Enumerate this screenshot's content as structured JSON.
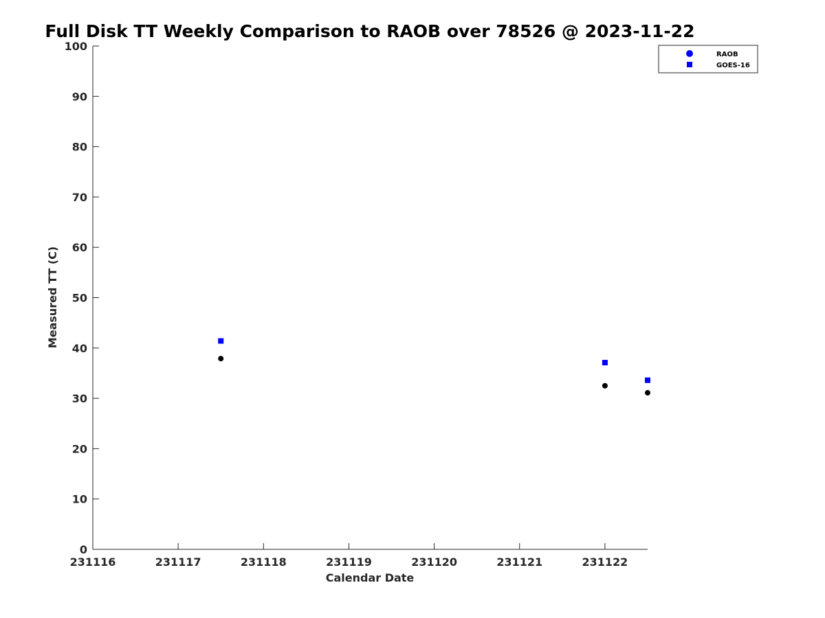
{
  "chart_data": {
    "type": "scatter",
    "title": "Full Disk TT Weekly Comparison to RAOB over 78526 @ 2023-11-22",
    "xlabel": "Calendar Date",
    "ylabel": "Measured TT (C)",
    "xlim": [
      231116,
      231122.5
    ],
    "ylim": [
      0,
      100
    ],
    "x_ticks": [
      231116,
      231117,
      231118,
      231119,
      231120,
      231121,
      231122
    ],
    "x_tick_labels": [
      "231116",
      "231117",
      "231118",
      "231119",
      "231120",
      "231121",
      "231122"
    ],
    "y_ticks": [
      0,
      10,
      20,
      30,
      40,
      50,
      60,
      70,
      80,
      90,
      100
    ],
    "y_tick_labels": [
      "0",
      "10",
      "20",
      "30",
      "40",
      "50",
      "60",
      "70",
      "80",
      "90",
      "100"
    ],
    "grid": false,
    "legend_position": "top-right",
    "series": [
      {
        "name": "RAOB",
        "marker": "circle",
        "legend_color": "#0000ff",
        "point_color": "#000000",
        "x": [
          231117.5,
          231122.0,
          231122.5
        ],
        "values": [
          37.9,
          32.5,
          31.1
        ]
      },
      {
        "name": "GOES-16",
        "marker": "square",
        "legend_color": "#0000ff",
        "point_color": "#0000ff",
        "x": [
          231117.5,
          231122.0,
          231122.5
        ],
        "values": [
          41.4,
          37.1,
          33.6
        ]
      }
    ]
  }
}
